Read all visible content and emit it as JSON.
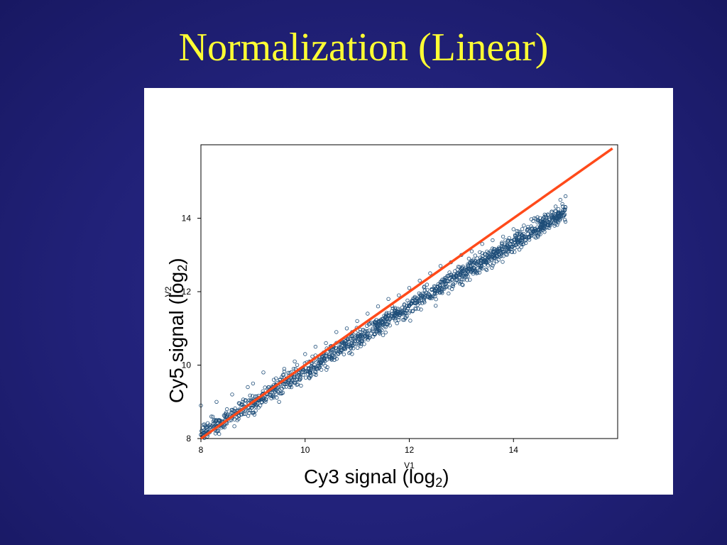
{
  "slide": {
    "title": "Normalization (Linear)"
  },
  "overlay_labels": {
    "x": {
      "main": "Cy3 signal (log",
      "sub": "2",
      "end": ")"
    },
    "y": {
      "main": "Cy5 signal (log",
      "sub": "2",
      "end": ")"
    }
  },
  "colors": {
    "background": "#1f1f72",
    "title": "#ffff33",
    "points": "#1f4e79",
    "fit_line": "#ff4a1a"
  },
  "chart_data": {
    "type": "scatter",
    "title": "",
    "xlabel": "V1",
    "ylabel": "V2",
    "xlim": [
      8,
      16
    ],
    "ylim": [
      8,
      16
    ],
    "x_ticks": [
      8,
      10,
      12,
      14
    ],
    "y_ticks": [
      8,
      10,
      12,
      14
    ],
    "grid": false,
    "series": [
      {
        "type": "scatter",
        "marker": "open-circle",
        "description_points": [
          [
            8.0,
            8.1
          ],
          [
            8.0,
            8.9
          ],
          [
            8.1,
            8.3
          ],
          [
            8.2,
            8.6
          ],
          [
            8.3,
            8.2
          ],
          [
            8.3,
            9.0
          ],
          [
            8.4,
            8.4
          ],
          [
            8.5,
            8.8
          ],
          [
            8.6,
            9.2
          ],
          [
            8.7,
            8.5
          ],
          [
            8.8,
            9.0
          ],
          [
            8.9,
            9.4
          ],
          [
            9.0,
            8.7
          ],
          [
            9.0,
            9.5
          ],
          [
            9.1,
            9.1
          ],
          [
            9.2,
            9.8
          ],
          [
            9.3,
            9.3
          ],
          [
            9.4,
            9.6
          ],
          [
            9.5,
            9.0
          ],
          [
            9.6,
            9.9
          ],
          [
            9.7,
            9.4
          ],
          [
            9.8,
            10.1
          ],
          [
            9.9,
            9.6
          ],
          [
            10.0,
            10.3
          ],
          [
            10.1,
            9.8
          ],
          [
            10.2,
            10.5
          ],
          [
            10.3,
            10.0
          ],
          [
            10.4,
            10.6
          ],
          [
            10.5,
            10.2
          ],
          [
            10.6,
            10.9
          ],
          [
            10.7,
            10.4
          ],
          [
            10.8,
            11.0
          ],
          [
            10.9,
            10.6
          ],
          [
            11.0,
            11.2
          ],
          [
            11.1,
            10.8
          ],
          [
            11.2,
            11.4
          ],
          [
            11.3,
            11.0
          ],
          [
            11.4,
            11.6
          ],
          [
            11.5,
            11.1
          ],
          [
            11.6,
            11.8
          ],
          [
            11.7,
            11.3
          ],
          [
            11.8,
            11.9
          ],
          [
            11.9,
            11.5
          ],
          [
            12.0,
            12.1
          ],
          [
            12.1,
            11.7
          ],
          [
            12.2,
            12.3
          ],
          [
            12.3,
            11.9
          ],
          [
            12.4,
            12.5
          ],
          [
            12.5,
            12.0
          ],
          [
            12.6,
            12.7
          ],
          [
            12.7,
            12.2
          ],
          [
            12.8,
            12.8
          ],
          [
            12.9,
            12.4
          ],
          [
            13.0,
            13.0
          ],
          [
            13.1,
            12.6
          ],
          [
            13.2,
            13.1
          ],
          [
            13.3,
            12.8
          ],
          [
            13.4,
            13.3
          ],
          [
            13.5,
            13.0
          ],
          [
            13.6,
            13.4
          ],
          [
            13.7,
            13.1
          ],
          [
            13.8,
            13.5
          ],
          [
            13.9,
            13.2
          ],
          [
            14.0,
            13.7
          ],
          [
            14.1,
            13.4
          ],
          [
            14.2,
            13.8
          ],
          [
            14.3,
            13.5
          ],
          [
            14.4,
            14.0
          ],
          [
            14.5,
            13.7
          ],
          [
            14.6,
            14.1
          ],
          [
            14.7,
            13.8
          ],
          [
            14.8,
            14.2
          ],
          [
            14.9,
            14.5
          ],
          [
            15.0,
            14.6
          ]
        ]
      },
      {
        "type": "line",
        "x": [
          8.0,
          15.9
        ],
        "y": [
          8.0,
          15.9
        ]
      }
    ]
  }
}
